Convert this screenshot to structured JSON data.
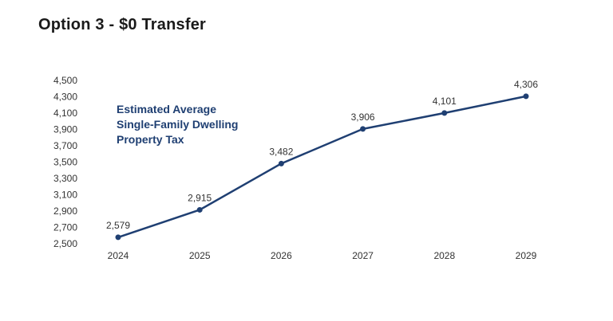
{
  "page": {
    "title": "Option 3 - $0 Transfer"
  },
  "colors": {
    "line": "#1f3f72",
    "annotation": "#1f3f72",
    "text": "#333333"
  },
  "chart_data": {
    "type": "line",
    "title": "Option 3 - $0 Transfer",
    "xlabel": "",
    "ylabel": "",
    "annotation": [
      "Estimated Average",
      "Single-Family Dwelling",
      "Property Tax"
    ],
    "categories": [
      "2024",
      "2025",
      "2026",
      "2027",
      "2028",
      "2029"
    ],
    "series": [
      {
        "values": [
          2579,
          2915,
          3482,
          3906,
          4101,
          4306
        ],
        "labels": [
          "2,579",
          "2,915",
          "3,482",
          "3,906",
          "4,101",
          "4,306"
        ]
      }
    ],
    "y_ticks": [
      2500,
      2700,
      2900,
      3100,
      3300,
      3500,
      3700,
      3900,
      4100,
      4300,
      4500
    ],
    "y_tick_labels": [
      "2,500",
      "2,700",
      "2,900",
      "3,100",
      "3,300",
      "3,500",
      "3,700",
      "3,900",
      "4,100",
      "4,300",
      "4,500"
    ],
    "ylim": [
      2500,
      4500
    ],
    "grid": false,
    "legend": "none"
  }
}
